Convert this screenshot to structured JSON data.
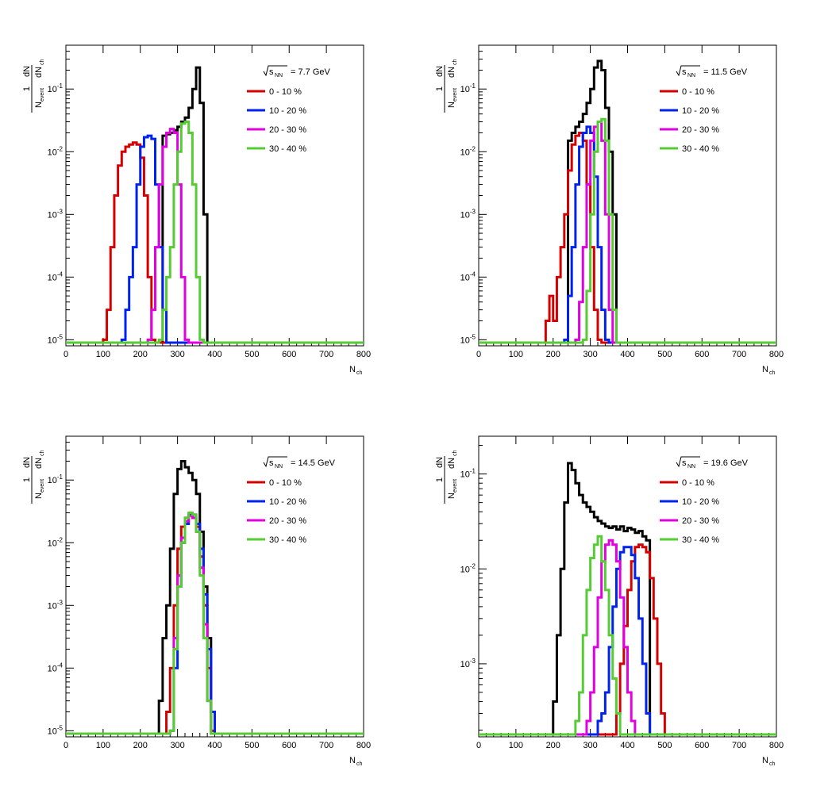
{
  "figure": {
    "ylabel_num": "1",
    "ylabel_den_sym": "N",
    "ylabel_den_sub": "event",
    "ylabel_dN_top": "dN",
    "ylabel_dN_bot": "dN",
    "ylabel_dN_sub": "ch",
    "xlabel_sym": "N",
    "xlabel_sub": "ch",
    "colors": {
      "all": "#000000",
      "0-10": "#d40000",
      "10-20": "#0022ee",
      "20-30": "#e000e0",
      "30-40": "#55cc33"
    }
  },
  "chart_data": [
    {
      "type": "line",
      "step": true,
      "energy_label": "= 7.7 GeV",
      "sqrt_label": "s",
      "sqrt_sub": "NN",
      "xlim": [
        0,
        800
      ],
      "ylim": [
        8e-06,
        0.5
      ],
      "yscale": "log",
      "xticks": [
        "0",
        "100",
        "200",
        "300",
        "400",
        "500",
        "600",
        "700",
        "800"
      ],
      "yticks": [
        {
          "exp": "-5",
          "v": 1e-05
        },
        {
          "exp": "-4",
          "v": 0.0001
        },
        {
          "exp": "-3",
          "v": 0.001
        },
        {
          "exp": "-2",
          "v": 0.01
        },
        {
          "exp": "-1",
          "v": 0.1
        }
      ],
      "legend": [
        "0 - 10 %",
        "10 - 20 %",
        "20 - 30 %",
        "30 - 40 %"
      ],
      "series": [
        {
          "key": "all",
          "x": [
            0,
            260,
            270,
            280,
            290,
            300,
            310,
            320,
            330,
            340,
            350,
            360,
            370,
            380,
            800
          ],
          "y": [
            9e-06,
            0.018,
            0.019,
            0.02,
            0.022,
            0.025,
            0.03,
            0.035,
            0.05,
            0.1,
            0.22,
            0.06,
            0.001,
            9e-06,
            9e-06
          ]
        },
        {
          "key": "0-10",
          "name": "0 - 10 %",
          "x": [
            0,
            100,
            110,
            120,
            130,
            140,
            150,
            160,
            170,
            180,
            190,
            200,
            210,
            220,
            230,
            240,
            250,
            260,
            270,
            800
          ],
          "y": [
            9e-06,
            1e-05,
            3e-05,
            0.0003,
            0.002,
            0.006,
            0.01,
            0.012,
            0.013,
            0.014,
            0.013,
            0.008,
            0.002,
            0.0001,
            1e-05,
            9e-06,
            9e-06,
            9e-06,
            9e-06,
            9e-06
          ]
        },
        {
          "key": "10-20",
          "name": "10 - 20 %",
          "x": [
            0,
            150,
            160,
            170,
            180,
            190,
            200,
            210,
            220,
            230,
            240,
            250,
            260,
            270,
            800
          ],
          "y": [
            9e-06,
            1e-05,
            3e-05,
            0.0001,
            0.0003,
            0.003,
            0.012,
            0.017,
            0.018,
            0.016,
            0.003,
            0.0003,
            3e-05,
            9e-06,
            9e-06
          ]
        },
        {
          "key": "20-30",
          "name": "20 - 30 %",
          "x": [
            0,
            220,
            230,
            240,
            250,
            260,
            270,
            280,
            290,
            300,
            310,
            320,
            330,
            800
          ],
          "y": [
            9e-06,
            1e-05,
            3e-05,
            0.0003,
            0.003,
            0.012,
            0.02,
            0.023,
            0.02,
            0.003,
            0.0001,
            1e-05,
            9e-06,
            9e-06
          ]
        },
        {
          "key": "30-40",
          "name": "30 - 40 %",
          "x": [
            0,
            250,
            260,
            270,
            280,
            290,
            300,
            310,
            320,
            330,
            340,
            350,
            360,
            370,
            800
          ],
          "y": [
            9e-06,
            1e-05,
            3e-05,
            0.0001,
            0.0003,
            0.003,
            0.01,
            0.028,
            0.03,
            0.02,
            0.003,
            0.0001,
            1e-05,
            9e-06,
            9e-06
          ]
        }
      ]
    },
    {
      "type": "line",
      "step": true,
      "energy_label": "= 11.5 GeV",
      "sqrt_label": "s",
      "sqrt_sub": "NN",
      "xlim": [
        0,
        800
      ],
      "ylim": [
        8e-06,
        0.5
      ],
      "yscale": "log",
      "xticks": [
        "0",
        "100",
        "200",
        "300",
        "400",
        "500",
        "600",
        "700",
        "800"
      ],
      "yticks": [
        {
          "exp": "-5",
          "v": 1e-05
        },
        {
          "exp": "-4",
          "v": 0.0001
        },
        {
          "exp": "-3",
          "v": 0.001
        },
        {
          "exp": "-2",
          "v": 0.01
        },
        {
          "exp": "-1",
          "v": 0.1
        }
      ],
      "legend": [
        "0 - 10 %",
        "10 - 20 %",
        "20 - 30 %",
        "30 - 40 %"
      ],
      "series": [
        {
          "key": "all",
          "x": [
            0,
            240,
            250,
            260,
            270,
            280,
            290,
            300,
            310,
            320,
            330,
            340,
            350,
            360,
            370,
            800
          ],
          "y": [
            9e-06,
            0.015,
            0.02,
            0.025,
            0.03,
            0.04,
            0.06,
            0.1,
            0.22,
            0.28,
            0.2,
            0.05,
            0.01,
            0.001,
            9e-06,
            9e-06
          ]
        },
        {
          "key": "0-10",
          "name": "0 - 10 %",
          "x": [
            0,
            180,
            190,
            200,
            210,
            220,
            230,
            240,
            250,
            260,
            270,
            280,
            290,
            300,
            310,
            320,
            330,
            800
          ],
          "y": [
            9e-06,
            2e-05,
            5e-05,
            2e-05,
            0.0001,
            0.0003,
            0.001,
            0.005,
            0.013,
            0.018,
            0.02,
            0.015,
            0.003,
            0.0003,
            3e-05,
            1e-05,
            9e-06,
            9e-06
          ]
        },
        {
          "key": "10-20",
          "name": "10 - 20 %",
          "x": [
            0,
            230,
            240,
            250,
            260,
            270,
            280,
            290,
            300,
            310,
            320,
            330,
            340,
            350,
            360,
            800
          ],
          "y": [
            9e-06,
            1e-05,
            5e-05,
            0.0003,
            0.003,
            0.012,
            0.02,
            0.025,
            0.02,
            0.004,
            0.0003,
            3e-05,
            1e-05,
            9e-06,
            9e-06,
            9e-06
          ]
        },
        {
          "key": "20-30",
          "name": "20 - 30 %",
          "x": [
            0,
            260,
            270,
            280,
            290,
            300,
            310,
            320,
            330,
            340,
            350,
            360,
            800
          ],
          "y": [
            9e-06,
            1e-05,
            4e-05,
            0.0003,
            0.003,
            0.015,
            0.025,
            0.03,
            0.015,
            0.001,
            3e-05,
            9e-06,
            9e-06
          ]
        },
        {
          "key": "30-40",
          "name": "30 - 40 %",
          "x": [
            0,
            280,
            290,
            300,
            310,
            320,
            330,
            340,
            350,
            360,
            370,
            800
          ],
          "y": [
            9e-06,
            1e-05,
            6e-05,
            0.001,
            0.01,
            0.03,
            0.033,
            0.015,
            0.001,
            3e-05,
            9e-06,
            9e-06
          ]
        }
      ]
    },
    {
      "type": "line",
      "step": true,
      "energy_label": "= 14.5 GeV",
      "sqrt_label": "s",
      "sqrt_sub": "NN",
      "xlim": [
        0,
        800
      ],
      "ylim": [
        8e-06,
        0.5
      ],
      "yscale": "log",
      "xticks": [
        "0",
        "100",
        "200",
        "300",
        "400",
        "500",
        "600",
        "700",
        "800"
      ],
      "yticks": [
        {
          "exp": "-5",
          "v": 1e-05
        },
        {
          "exp": "-4",
          "v": 0.0001
        },
        {
          "exp": "-3",
          "v": 0.001
        },
        {
          "exp": "-2",
          "v": 0.01
        },
        {
          "exp": "-1",
          "v": 0.1
        }
      ],
      "legend": [
        "0 - 10 %",
        "10 - 20 %",
        "20 - 30 %",
        "30 - 40 %"
      ],
      "series": [
        {
          "key": "all",
          "x": [
            0,
            250,
            260,
            270,
            280,
            290,
            300,
            310,
            320,
            330,
            340,
            350,
            360,
            370,
            380,
            390,
            400,
            800
          ],
          "y": [
            9e-06,
            3e-05,
            0.0003,
            0.001,
            0.008,
            0.06,
            0.15,
            0.2,
            0.16,
            0.13,
            0.1,
            0.06,
            0.015,
            0.002,
            0.0003,
            2e-05,
            9e-06,
            9e-06
          ]
        },
        {
          "key": "0-10",
          "name": "0 - 10 %",
          "x": [
            0,
            270,
            280,
            290,
            300,
            310,
            320,
            330,
            340,
            350,
            360,
            370,
            380,
            390,
            400,
            800
          ],
          "y": [
            9e-06,
            2e-05,
            0.0001,
            0.001,
            0.008,
            0.018,
            0.025,
            0.027,
            0.025,
            0.018,
            0.006,
            0.001,
            0.0001,
            1e-05,
            9e-06,
            9e-06
          ]
        },
        {
          "key": "10-20",
          "name": "10 - 20 %",
          "x": [
            0,
            280,
            290,
            300,
            310,
            320,
            330,
            340,
            350,
            360,
            370,
            380,
            390,
            400,
            800
          ],
          "y": [
            9e-06,
            1e-05,
            0.0001,
            0.002,
            0.01,
            0.02,
            0.028,
            0.028,
            0.02,
            0.008,
            0.0015,
            0.0002,
            2e-05,
            9e-06,
            9e-06
          ]
        },
        {
          "key": "20-30",
          "name": "20 - 30 %",
          "x": [
            0,
            280,
            290,
            300,
            310,
            320,
            330,
            340,
            350,
            360,
            370,
            380,
            390,
            800
          ],
          "y": [
            9e-06,
            1e-05,
            0.0003,
            0.003,
            0.012,
            0.022,
            0.027,
            0.025,
            0.015,
            0.004,
            0.0005,
            3e-05,
            9e-06,
            9e-06
          ]
        },
        {
          "key": "30-40",
          "name": "30 - 40 %",
          "x": [
            0,
            280,
            290,
            300,
            310,
            320,
            330,
            340,
            350,
            360,
            370,
            380,
            390,
            800
          ],
          "y": [
            9e-06,
            1e-05,
            0.0002,
            0.002,
            0.01,
            0.025,
            0.03,
            0.028,
            0.015,
            0.003,
            0.0003,
            3e-05,
            9e-06,
            9e-06
          ]
        }
      ]
    },
    {
      "type": "line",
      "step": true,
      "energy_label": "= 19.6 GeV",
      "sqrt_label": "s",
      "sqrt_sub": "NN",
      "xlim": [
        0,
        800
      ],
      "ylim": [
        0.00017,
        0.25
      ],
      "yscale": "log",
      "xticks": [
        "0",
        "100",
        "200",
        "300",
        "400",
        "500",
        "600",
        "700",
        "800"
      ],
      "yticks": [
        {
          "exp": "-3",
          "v": 0.001
        },
        {
          "exp": "-2",
          "v": 0.01
        },
        {
          "exp": "-1",
          "v": 0.1
        }
      ],
      "legend": [
        "0 - 10 %",
        "10 - 20 %",
        "20 - 30 %",
        "30 - 40 %"
      ],
      "series": [
        {
          "key": "all",
          "x": [
            0,
            200,
            210,
            220,
            230,
            240,
            250,
            260,
            270,
            280,
            290,
            300,
            310,
            320,
            330,
            340,
            350,
            360,
            370,
            380,
            390,
            400,
            410,
            420,
            430,
            440,
            450,
            460,
            800
          ],
          "y": [
            0.00018,
            0.0004,
            0.002,
            0.01,
            0.05,
            0.13,
            0.11,
            0.08,
            0.06,
            0.05,
            0.045,
            0.04,
            0.035,
            0.032,
            0.03,
            0.028,
            0.027,
            0.028,
            0.026,
            0.028,
            0.025,
            0.027,
            0.026,
            0.024,
            0.025,
            0.022,
            0.02,
            0.00018,
            0.00018
          ]
        },
        {
          "key": "0-10",
          "name": "0 - 10 %",
          "x": [
            0,
            370,
            380,
            390,
            400,
            410,
            420,
            430,
            440,
            450,
            460,
            470,
            480,
            490,
            500,
            800
          ],
          "y": [
            0.00018,
            0.0003,
            0.001,
            0.0025,
            0.006,
            0.012,
            0.017,
            0.018,
            0.017,
            0.015,
            0.008,
            0.003,
            0.001,
            0.0003,
            0.00018,
            0.00018
          ]
        },
        {
          "key": "10-20",
          "name": "10 - 20 %",
          "x": [
            0,
            320,
            330,
            340,
            350,
            360,
            370,
            380,
            390,
            400,
            410,
            420,
            430,
            440,
            450,
            460,
            800
          ],
          "y": [
            0.00018,
            0.00025,
            0.0003,
            0.0005,
            0.0015,
            0.004,
            0.01,
            0.015,
            0.017,
            0.017,
            0.014,
            0.008,
            0.003,
            0.001,
            0.0003,
            0.00018,
            0.00018
          ]
        },
        {
          "key": "20-30",
          "name": "20 - 30 %",
          "x": [
            0,
            290,
            300,
            310,
            320,
            330,
            340,
            350,
            360,
            370,
            380,
            390,
            400,
            410,
            420,
            800
          ],
          "y": [
            0.00018,
            0.00025,
            0.0005,
            0.0015,
            0.005,
            0.012,
            0.018,
            0.02,
            0.018,
            0.012,
            0.005,
            0.0015,
            0.0005,
            0.00025,
            0.00018,
            0.00018
          ]
        },
        {
          "key": "30-40",
          "name": "30 - 40 %",
          "x": [
            0,
            260,
            270,
            280,
            290,
            300,
            310,
            320,
            330,
            340,
            350,
            360,
            370,
            380,
            800
          ],
          "y": [
            0.00018,
            0.00025,
            0.0005,
            0.002,
            0.006,
            0.013,
            0.018,
            0.022,
            0.012,
            0.006,
            0.002,
            0.0007,
            0.0003,
            0.00018,
            0.00018
          ]
        }
      ]
    }
  ]
}
